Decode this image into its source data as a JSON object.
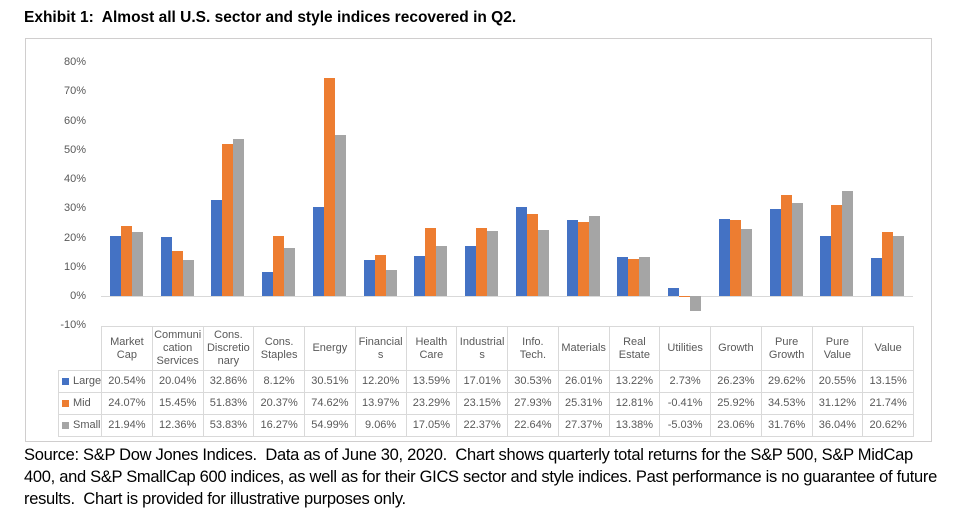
{
  "title": "Exhibit 1:  Almost all U.S. sector and style indices recovered in Q2.",
  "chart_data": {
    "type": "bar",
    "title": "Exhibit 1:  Almost all U.S. sector and style indices recovered in Q2.",
    "categories": [
      "Market Cap",
      "Communication Services",
      "Cons. Discretionary",
      "Cons. Staples",
      "Energy",
      "Financials",
      "Health Care",
      "Industrials",
      "Info. Tech.",
      "Materials",
      "Real Estate",
      "Utilities",
      "Growth",
      "Pure Growth",
      "Pure Value",
      "Value"
    ],
    "series": [
      {
        "name": "Large",
        "color": "#4472C4",
        "values": [
          20.54,
          20.04,
          32.86,
          8.12,
          30.51,
          12.2,
          13.59,
          17.01,
          30.53,
          26.01,
          13.22,
          2.73,
          26.23,
          29.62,
          20.55,
          13.15
        ]
      },
      {
        "name": "Mid",
        "color": "#ED7D31",
        "values": [
          24.07,
          15.45,
          51.83,
          20.37,
          74.62,
          13.97,
          23.29,
          23.15,
          27.93,
          25.31,
          12.81,
          -0.41,
          25.92,
          34.53,
          31.12,
          21.74
        ]
      },
      {
        "name": "Small",
        "color": "#A5A5A5",
        "values": [
          21.94,
          12.36,
          53.83,
          16.27,
          54.99,
          9.06,
          17.05,
          22.37,
          22.64,
          27.37,
          13.38,
          -5.03,
          23.06,
          31.76,
          36.04,
          20.62
        ]
      }
    ],
    "xlabel": "",
    "ylabel": "",
    "ylim": [
      -10,
      80
    ],
    "yticks": [
      80,
      70,
      60,
      50,
      40,
      30,
      20,
      10,
      0,
      -10
    ],
    "ytick_labels": [
      "80%",
      "70%",
      "60%",
      "50%",
      "40%",
      "30%",
      "20%",
      "10%",
      "0%",
      "-10%"
    ],
    "grid": false,
    "legend_position": "table-left-keys"
  },
  "table": {
    "columns": [
      "Market Cap",
      "Communication Services",
      "Cons. Discretionary",
      "Cons. Staples",
      "Energy",
      "Financials",
      "Health Care",
      "Industrials",
      "Info. Tech.",
      "Materials",
      "Real Estate",
      "Utilities",
      "Growth",
      "Pure Growth",
      "Pure Value",
      "Value"
    ],
    "rows": [
      {
        "label": "Large",
        "swatch": "#4472C4",
        "values": [
          "20.54%",
          "20.04%",
          "32.86%",
          "8.12%",
          "30.51%",
          "12.20%",
          "13.59%",
          "17.01%",
          "30.53%",
          "26.01%",
          "13.22%",
          "2.73%",
          "26.23%",
          "29.62%",
          "20.55%",
          "13.15%"
        ]
      },
      {
        "label": "Mid",
        "swatch": "#ED7D31",
        "values": [
          "24.07%",
          "15.45%",
          "51.83%",
          "20.37%",
          "74.62%",
          "13.97%",
          "23.29%",
          "23.15%",
          "27.93%",
          "25.31%",
          "12.81%",
          "-0.41%",
          "25.92%",
          "34.53%",
          "31.12%",
          "21.74%"
        ]
      },
      {
        "label": "Small",
        "swatch": "#A5A5A5",
        "values": [
          "21.94%",
          "12.36%",
          "53.83%",
          "16.27%",
          "54.99%",
          "9.06%",
          "17.05%",
          "22.37%",
          "22.64%",
          "27.37%",
          "13.38%",
          "-5.03%",
          "23.06%",
          "31.76%",
          "36.04%",
          "20.62%"
        ]
      }
    ]
  },
  "footer": {
    "lines": [
      "Source: S&P Dow Jones Indices.  Data as of June 30, 2020.  Chart shows quarterly total returns for the S&P 500, S&P MidCap",
      "400, and S&P SmallCap 600 indices, as well as for their GICS sector and style indices. Past performance is no guarantee of future",
      "results.  Chart is provided for illustrative purposes only."
    ]
  }
}
